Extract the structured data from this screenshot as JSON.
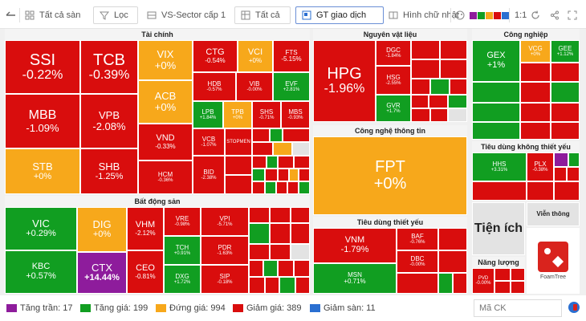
{
  "toolbar": {
    "collapse_label": "",
    "exchange_label": "Tất cả sàn",
    "filter_label": "Lọc",
    "sector_level_label": "VS-Sector cấp 1",
    "scope_label": "Tất cả",
    "metric_label": "GT giao dịch",
    "shape_label": "Hình chữ nhật",
    "ratio_label": "1:1",
    "swatch_colors": [
      "#8e1c9c",
      "#119e21",
      "#f7a81b",
      "#d90d0d",
      "#2a6fd1"
    ]
  },
  "sectors": {
    "finance": "Tài chính",
    "materials": "Nguyên vật liệu",
    "industrial": "Công nghiệp",
    "realestate": "Bất động sản",
    "it": "Công nghệ thông tin",
    "consumer_disc": "Tiêu dùng không thiết yếu",
    "consumer_staples": "Tiêu dùng thiết yếu",
    "utilities": "Tiện ích",
    "telecom": "Viễn thông",
    "energy": "Năng lượng"
  },
  "tiles": {
    "SSI": {
      "t": "SSI",
      "v": "-0.22%"
    },
    "TCB": {
      "t": "TCB",
      "v": "-0.39%"
    },
    "VIX": {
      "t": "VIX",
      "v": "+0%"
    },
    "CTG": {
      "t": "CTG",
      "v": "-0.54%"
    },
    "VCI": {
      "t": "VCI",
      "v": "+0%"
    },
    "FTS": {
      "t": "FTS",
      "v": "-5.15%"
    },
    "MBB": {
      "t": "MBB",
      "v": "-1.09%"
    },
    "VPB": {
      "t": "VPB",
      "v": "-2.08%"
    },
    "ACB": {
      "t": "ACB",
      "v": "+0%"
    },
    "HDB": {
      "t": "HDB",
      "v": "-0.57%"
    },
    "VIB": {
      "t": "VIB",
      "v": "-0.00%"
    },
    "EVF": {
      "t": "EVF",
      "v": "+2.81%"
    },
    "LPB": {
      "t": "LPB",
      "v": "+1.84%"
    },
    "TPB": {
      "t": "TPB",
      "v": "+0%"
    },
    "SHS": {
      "t": "SHS",
      "v": "-0.71%"
    },
    "MBS": {
      "t": "MBS",
      "v": "-0.93%"
    },
    "VND": {
      "t": "VND",
      "v": "-0.33%"
    },
    "VCB": {
      "t": "VCB",
      "v": "-1.07%"
    },
    "STB": {
      "t": "STB",
      "v": "+0%"
    },
    "SHB": {
      "t": "SHB",
      "v": "-1.25%"
    },
    "HCM": {
      "t": "HCM",
      "v": "-0.36%"
    },
    "BID": {
      "t": "BID",
      "v": "-2.38%"
    },
    "HPG": {
      "t": "HPG",
      "v": "-1.96%"
    },
    "DGC": {
      "t": "DGC",
      "v": "-1.84%"
    },
    "HSG": {
      "t": "HSG",
      "v": "-2.55%"
    },
    "GVR": {
      "t": "GVR",
      "v": "+1.7%"
    },
    "FPT": {
      "t": "FPT",
      "v": "+0%"
    },
    "VNM": {
      "t": "VNM",
      "v": "-1.79%"
    },
    "BAF": {
      "t": "BAF",
      "v": "-0.76%"
    },
    "DBC": {
      "t": "DBC",
      "v": "-0.00%"
    },
    "MSN": {
      "t": "MSN",
      "v": "+0.71%"
    },
    "GEX": {
      "t": "GEX",
      "v": "+1%"
    },
    "VCG": {
      "t": "VCG",
      "v": "+0%"
    },
    "GEE": {
      "t": "GEE",
      "v": "+1.12%"
    },
    "HHS": {
      "t": "HHS",
      "v": "+3.31%"
    },
    "PLX": {
      "t": "PLX",
      "v": "-0.38%"
    },
    "PVD": {
      "t": "PVD",
      "v": "-0.00%"
    },
    "VIC": {
      "t": "VIC",
      "v": "+0.29%"
    },
    "DIG": {
      "t": "DIG",
      "v": "+0%"
    },
    "VHM": {
      "t": "VHM",
      "v": "-2.12%"
    },
    "VRE": {
      "t": "VRE",
      "v": "-0.98%"
    },
    "VPI": {
      "t": "VPI",
      "v": "-5.71%"
    },
    "TCH": {
      "t": "TCH",
      "v": "+0.91%"
    },
    "PDR": {
      "t": "PDR",
      "v": "-1.63%"
    },
    "KBC": {
      "t": "KBC",
      "v": "+0.57%"
    },
    "CTX": {
      "t": "CTX",
      "v": "+14.44%"
    },
    "CEO": {
      "t": "CEO",
      "v": "-0.81%"
    },
    "DXG": {
      "t": "DXG",
      "v": "+1.72%"
    },
    "SIP": {
      "t": "SIP",
      "v": "-0.18%"
    },
    "STOPMEN": {
      "t": "STOPMEN",
      "v": ""
    }
  },
  "foamtree_label": "FoamTree",
  "legend": {
    "ceiling": "Tăng trần: 17",
    "up": "Tăng giá: 199",
    "flat": "Đứng giá: 994",
    "down": "Giảm giá: 389",
    "floor": "Giảm sàn: 11"
  },
  "search": {
    "placeholder": "Mã CK"
  },
  "colors": {
    "ceiling": "#8e1c9c",
    "up": "#119e21",
    "flat": "#f7a81b",
    "down": "#d90d0d",
    "floor": "#2a6fd1"
  }
}
